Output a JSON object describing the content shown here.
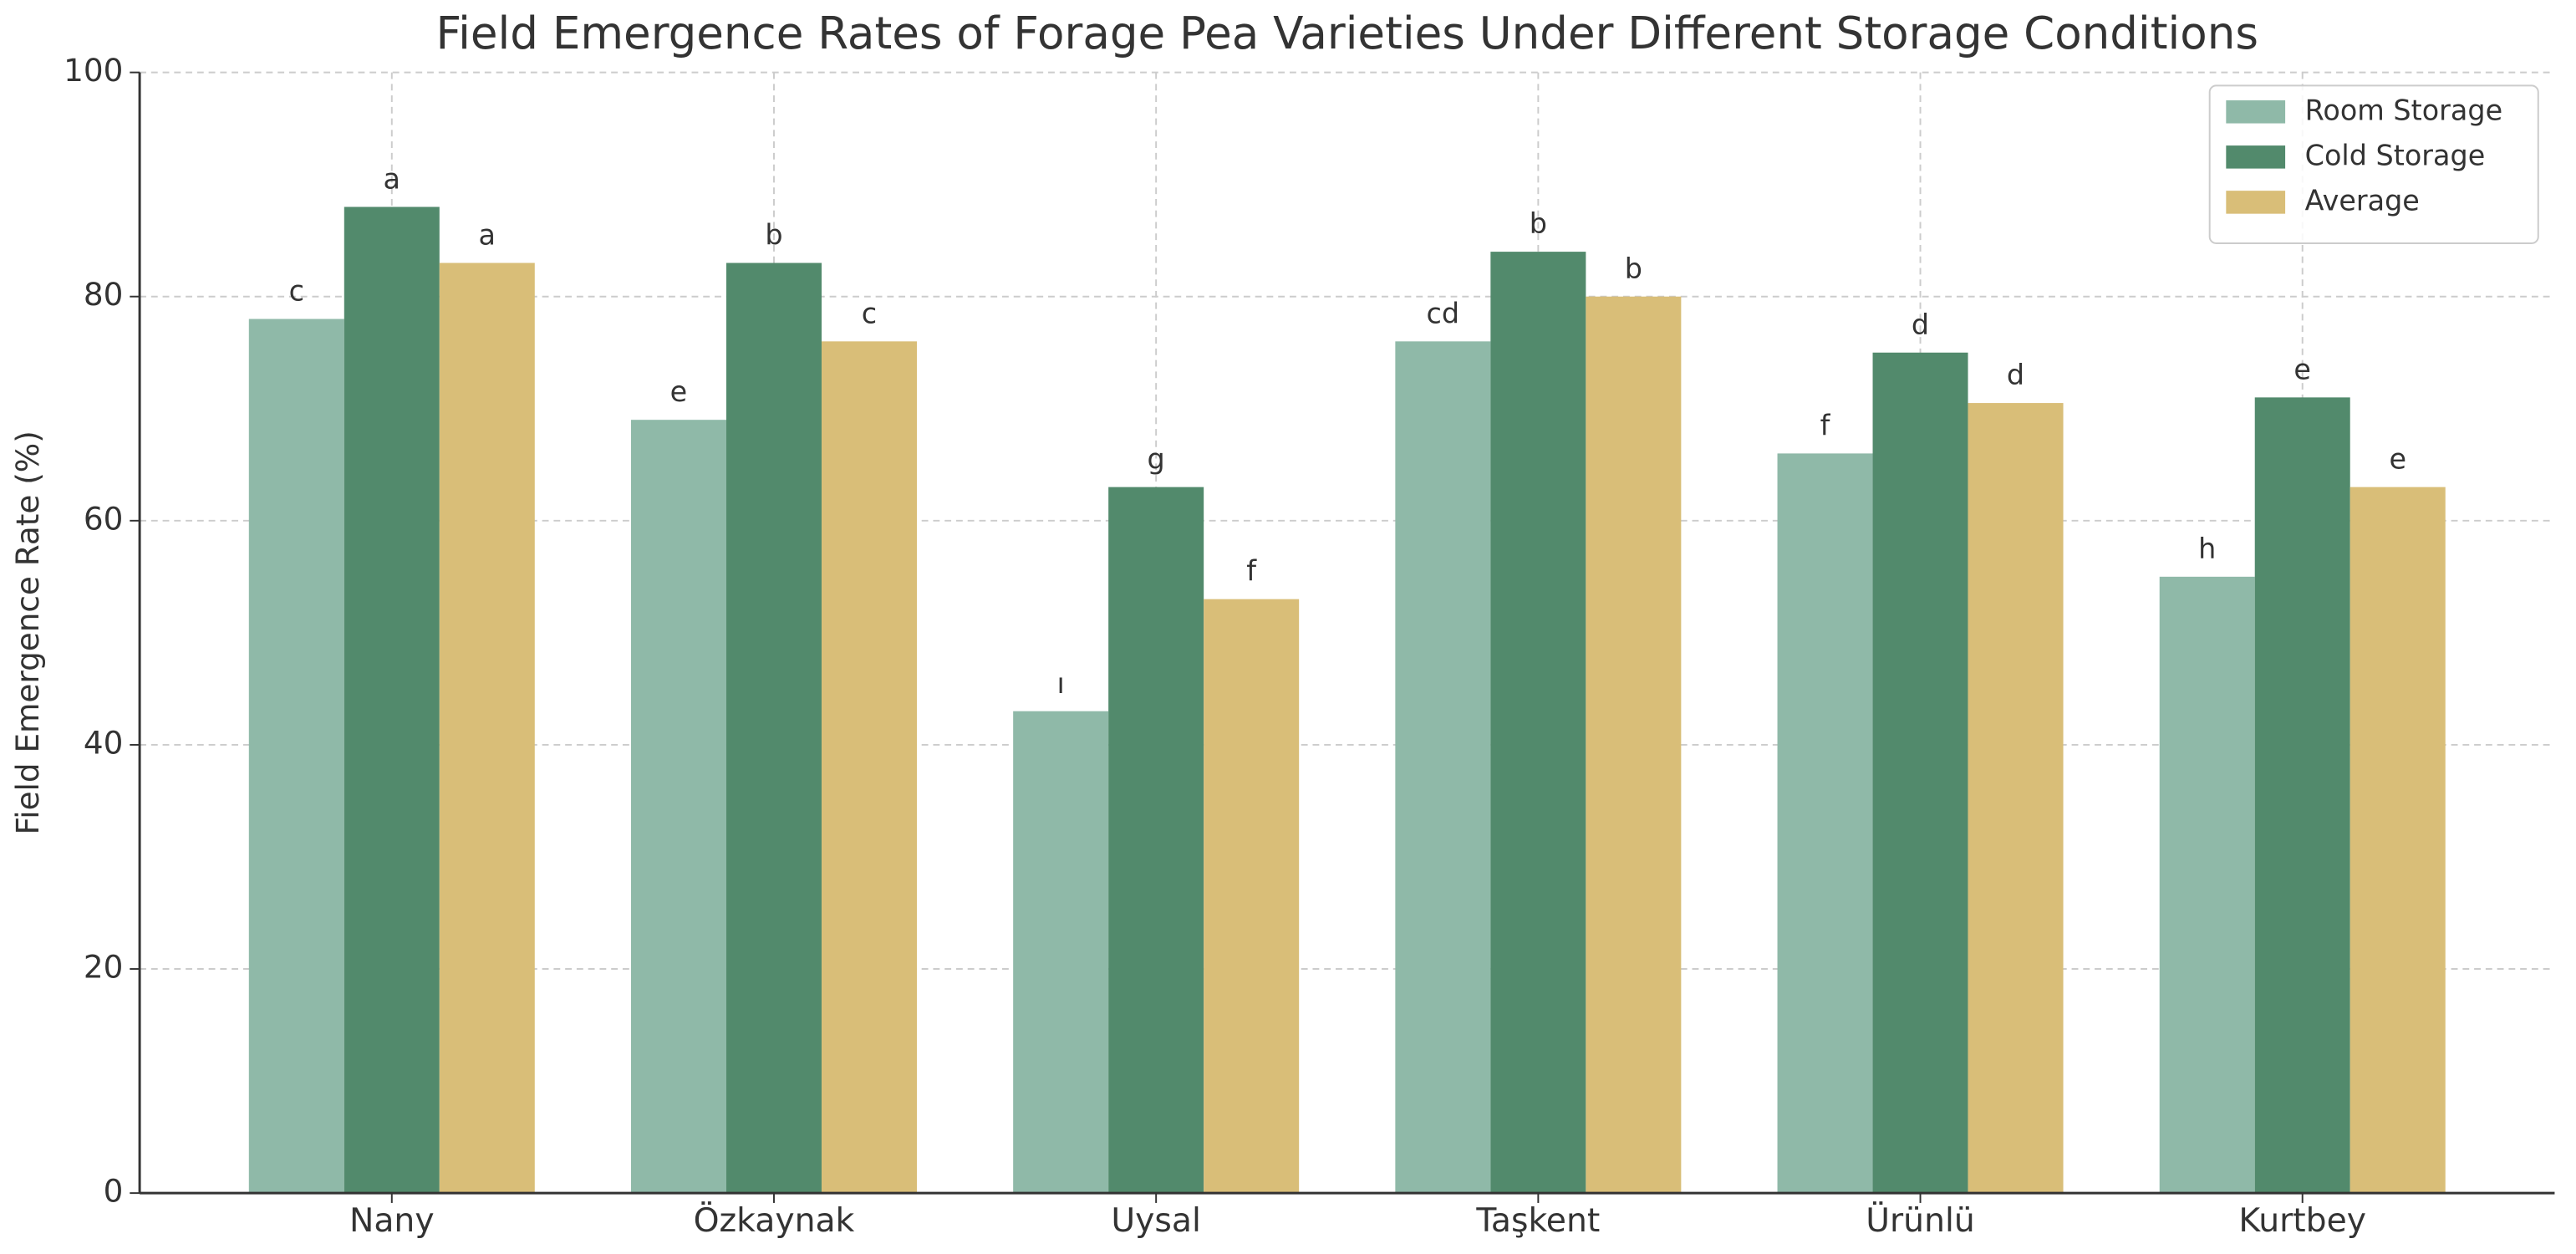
{
  "chart_data": {
    "type": "bar",
    "title": "Field Emergence Rates of Forage Pea Varieties Under Different Storage Conditions",
    "y_label": "Field Emergence Rate (%)",
    "categories": [
      "Nany",
      "Özkaynak",
      "Uysal",
      "Taşkent",
      "Ürünlü",
      "Kurtbey"
    ],
    "series": [
      {
        "name": "Room Storage",
        "color": "#8fb9a8",
        "values": [
          78,
          69,
          43,
          76,
          66,
          55
        ],
        "letters": [
          "c",
          "e",
          "ı",
          "cd",
          "f",
          "h"
        ]
      },
      {
        "name": "Cold Storage",
        "color": "#528a6c",
        "values": [
          88,
          83,
          63,
          84,
          75,
          71
        ],
        "letters": [
          "a",
          "b",
          "g",
          "b",
          "d",
          "e"
        ]
      },
      {
        "name": "Average",
        "color": "#d9be78",
        "values": [
          83,
          76,
          53,
          80,
          70.5,
          63
        ],
        "letters": [
          "a",
          "c",
          "f",
          "b",
          "d",
          "e"
        ]
      }
    ],
    "ylim": [
      0,
      100
    ],
    "yticks": [
      0,
      20,
      40,
      60,
      80,
      100
    ],
    "grid": true,
    "legend": "upper right"
  }
}
